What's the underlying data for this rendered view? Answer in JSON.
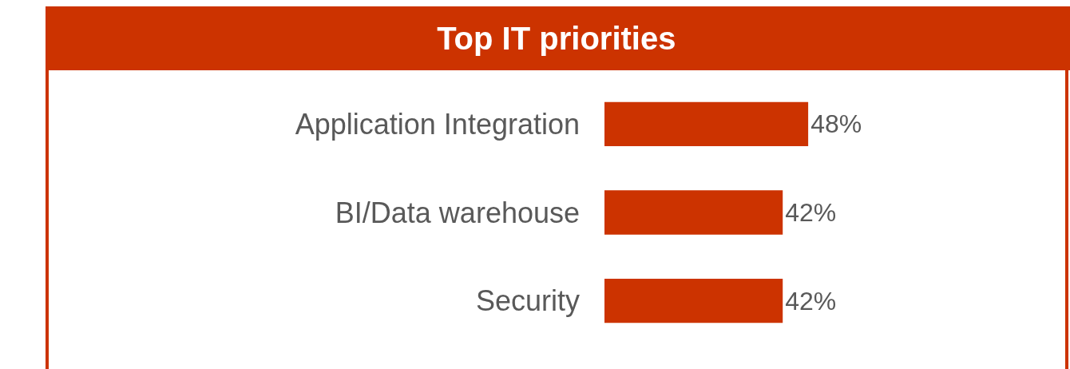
{
  "chart_data": {
    "type": "bar",
    "orientation": "horizontal",
    "title": "Top IT priorities",
    "categories": [
      "Application Integration",
      "BI/Data warehouse",
      "Security"
    ],
    "values": [
      48,
      42,
      42
    ],
    "value_labels": [
      "48%",
      "42%",
      "42%"
    ],
    "color": "#cc3300",
    "legend": false
  }
}
